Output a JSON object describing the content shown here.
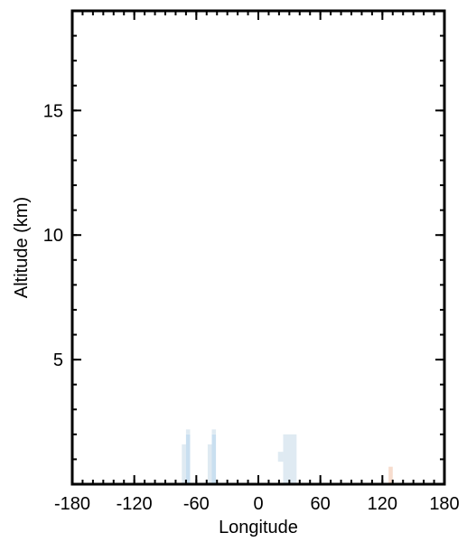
{
  "chart_data": {
    "type": "heatmap",
    "title": "",
    "xlabel": "Longitude",
    "ylabel": "Altitude (km)",
    "xlim": [
      -180,
      180
    ],
    "ylim": [
      0,
      19
    ],
    "x_ticks": [
      -180,
      -120,
      -60,
      0,
      60,
      120,
      180
    ],
    "y_ticks": [
      5,
      10,
      15
    ],
    "x_tick_labels": [
      "-180",
      "-120",
      "-60",
      "0",
      "60",
      "120",
      "180"
    ],
    "y_tick_labels": [
      "5",
      "10",
      "15"
    ],
    "cells": [
      {
        "x0": -74,
        "x1": -70,
        "y0": 0.0,
        "y1": 1.6,
        "color": "#dfeaf2"
      },
      {
        "x0": -70,
        "x1": -66,
        "y0": 0.0,
        "y1": 2.0,
        "color": "#c9dff0"
      },
      {
        "x0": -70,
        "x1": -66,
        "y0": 2.0,
        "y1": 2.2,
        "color": "#dfeaf2"
      },
      {
        "x0": -49,
        "x1": -45,
        "y0": 0.0,
        "y1": 1.6,
        "color": "#dfeaf2"
      },
      {
        "x0": -45,
        "x1": -41,
        "y0": 0.0,
        "y1": 2.0,
        "color": "#c9dff0"
      },
      {
        "x0": -45,
        "x1": -41,
        "y0": 2.0,
        "y1": 2.2,
        "color": "#dfeaf2"
      },
      {
        "x0": 19,
        "x1": 24,
        "y0": 0.9,
        "y1": 1.3,
        "color": "#dfeaf2"
      },
      {
        "x0": 24,
        "x1": 37,
        "y0": 0.0,
        "y1": 2.0,
        "color": "#dfeaf2"
      },
      {
        "x0": 126,
        "x1": 130,
        "y0": 0.0,
        "y1": 0.7,
        "color": "#f7dccd"
      }
    ]
  }
}
